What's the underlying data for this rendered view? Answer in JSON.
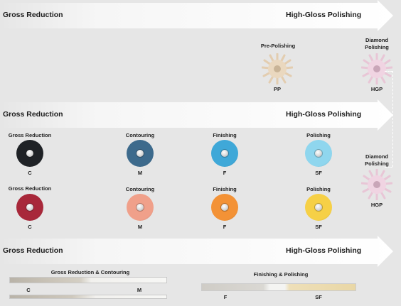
{
  "colors": {
    "background": "#e6e6e6",
    "arrow": "#ffffff",
    "text": "#1c1c1c"
  },
  "arrows": [
    {
      "left_label": "Gross Reduction",
      "right_label": "High-Gloss Polishing"
    },
    {
      "left_label": "Gross Reduction",
      "right_label": "High-Gloss Polishing"
    },
    {
      "left_label": "Gross Reduction",
      "right_label": "High-Gloss Polishing"
    }
  ],
  "top_row": {
    "pre_polishing": {
      "label": "Pre-Polishing",
      "grade": "PP"
    },
    "diamond_polishing": {
      "label_line1": "Diamond",
      "label_line2": "Polishing",
      "grade": "HGP"
    }
  },
  "disc_row1": [
    {
      "label": "Gross Reduction",
      "grade": "C",
      "color": "#1f2226"
    },
    {
      "label": "Contouring",
      "grade": "M",
      "color": "#3d6a8c"
    },
    {
      "label": "Finishing",
      "grade": "F",
      "color": "#3fa8d8"
    },
    {
      "label": "Polishing",
      "grade": "SF",
      "color": "#8fd6ee"
    }
  ],
  "disc_row2": [
    {
      "label": "Gross Reduction",
      "grade": "C",
      "color": "#a8283a"
    },
    {
      "label": "Contouring",
      "grade": "M",
      "color": "#f0a08a"
    },
    {
      "label": "Finishing",
      "grade": "F",
      "color": "#f39236"
    },
    {
      "label": "Polishing",
      "grade": "SF",
      "color": "#f6d046"
    }
  ],
  "middle_diamond": {
    "label_line1": "Diamond",
    "label_line2": "Polishing",
    "grade": "HGP"
  },
  "strips": {
    "left": {
      "label": "Gross Reduction & Contouring",
      "grade_left": "C",
      "grade_right": "M"
    },
    "right": {
      "label": "Finishing & Polishing",
      "grade_left": "F",
      "grade_right": "SF"
    }
  }
}
